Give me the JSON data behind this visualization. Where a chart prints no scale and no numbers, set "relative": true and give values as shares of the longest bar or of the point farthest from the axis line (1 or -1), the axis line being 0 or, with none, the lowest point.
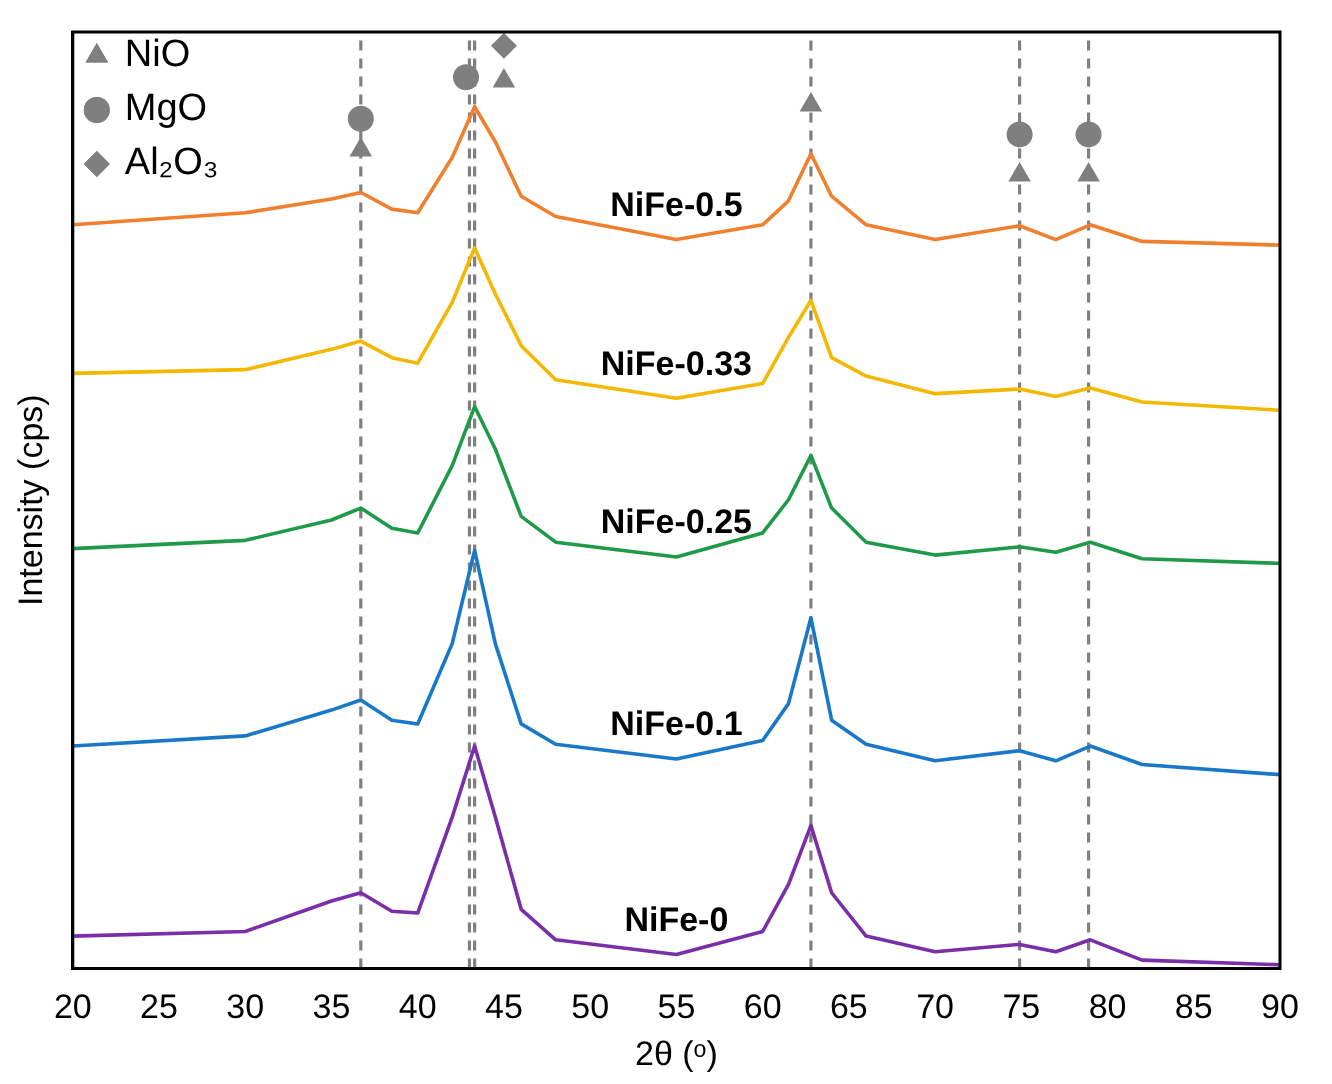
{
  "chart_data": {
    "type": "line",
    "xlabel": "2θ (ᵒ)",
    "ylabel": "Intensity (cps)",
    "relative": true,
    "x": [
      20,
      30,
      35,
      36.7,
      38.5,
      40,
      42,
      43.3,
      44.5,
      46,
      48,
      55,
      60,
      61.5,
      62.8,
      64,
      66,
      70,
      74.9,
      77,
      79,
      82,
      90
    ],
    "xlim": [
      20,
      90
    ],
    "xticks": [
      20,
      25,
      30,
      35,
      40,
      45,
      50,
      55,
      60,
      65,
      70,
      75,
      80,
      85,
      90
    ],
    "grid": false,
    "legend": "top left",
    "series": [
      {
        "name": "NiFe-0.5",
        "color": "#f07f2e",
        "values": [
          0.806,
          0.819,
          0.834,
          0.841,
          0.823,
          0.819,
          0.879,
          0.934,
          0.896,
          0.837,
          0.815,
          0.79,
          0.806,
          0.832,
          0.883,
          0.837,
          0.806,
          0.79,
          0.805,
          0.79,
          0.806,
          0.788,
          0.784
        ]
      },
      {
        "name": "NiFe-0.33",
        "color": "#f5b800",
        "values": [
          0.645,
          0.649,
          0.671,
          0.68,
          0.662,
          0.656,
          0.722,
          0.781,
          0.731,
          0.675,
          0.638,
          0.618,
          0.634,
          0.684,
          0.724,
          0.662,
          0.642,
          0.623,
          0.628,
          0.62,
          0.629,
          0.614,
          0.605
        ]
      },
      {
        "name": "NiFe-0.25",
        "color": "#1f9a48",
        "values": [
          0.455,
          0.464,
          0.486,
          0.499,
          0.477,
          0.472,
          0.545,
          0.609,
          0.563,
          0.49,
          0.462,
          0.446,
          0.472,
          0.508,
          0.556,
          0.499,
          0.462,
          0.448,
          0.457,
          0.451,
          0.462,
          0.444,
          0.439
        ]
      },
      {
        "name": "NiFe-0.1",
        "color": "#1a78c8",
        "values": [
          0.241,
          0.252,
          0.28,
          0.291,
          0.269,
          0.265,
          0.352,
          0.453,
          0.352,
          0.265,
          0.243,
          0.227,
          0.247,
          0.287,
          0.38,
          0.269,
          0.243,
          0.225,
          0.236,
          0.225,
          0.241,
          0.221,
          0.21
        ]
      },
      {
        "name": "NiFe-0",
        "color": "#7a2fa8",
        "values": [
          0.035,
          0.04,
          0.073,
          0.082,
          0.062,
          0.06,
          0.164,
          0.241,
          0.164,
          0.064,
          0.031,
          0.015,
          0.04,
          0.091,
          0.155,
          0.082,
          0.035,
          0.018,
          0.026,
          0.018,
          0.031,
          0.009,
          0.004
        ]
      },
      {
        "name": "NiO",
        "type": "scatter",
        "marker": "triangle",
        "color": "#7f7f7f",
        "x": [
          36.7,
          45.0,
          62.8,
          74.9,
          78.9
        ],
        "values": [
          0.887,
          0.962,
          0.936,
          0.86,
          0.86
        ]
      },
      {
        "name": "MgO",
        "type": "scatter",
        "marker": "circle",
        "color": "#7f7f7f",
        "x": [
          36.7,
          42.8,
          74.9,
          78.9
        ],
        "values": [
          0.921,
          0.966,
          0.904,
          0.904
        ]
      },
      {
        "name": "Al₂O₃",
        "type": "scatter",
        "marker": "diamond",
        "color": "#7f7f7f",
        "x": [
          45.0
        ],
        "values": [
          1.0
        ]
      }
    ],
    "ref_lines": [
      {
        "axis": "x",
        "value": 36.7,
        "color": "#808080",
        "line_style": "dashed"
      },
      {
        "axis": "x",
        "value": 43.0,
        "color": "#808080",
        "line_style": "dashed"
      },
      {
        "axis": "x",
        "value": 43.3,
        "color": "#808080",
        "line_style": "dashed"
      },
      {
        "axis": "x",
        "value": 62.8,
        "color": "#808080",
        "line_style": "dashed"
      },
      {
        "axis": "x",
        "value": 74.9,
        "color": "#808080",
        "line_style": "dashed"
      },
      {
        "axis": "x",
        "value": 78.9,
        "color": "#808080",
        "line_style": "dashed"
      }
    ]
  }
}
